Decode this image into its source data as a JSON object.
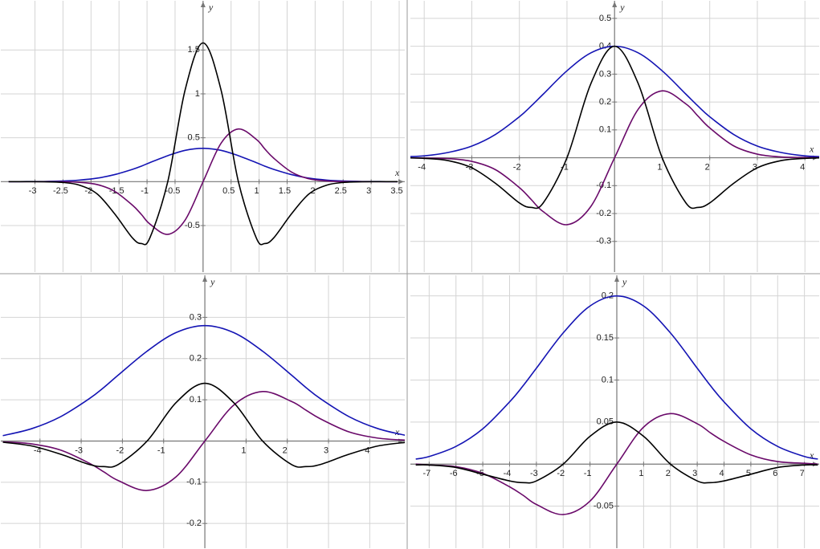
{
  "chart_data": [
    {
      "type": "line",
      "xlabel": "x",
      "ylabel": "y",
      "grid": true,
      "xlim": [
        -3.61,
        3.6
      ],
      "ylim": [
        -1.03,
        2.06
      ],
      "xticks": [
        -3,
        -2.5,
        -2,
        -1.5,
        -1,
        -0.5,
        0.5,
        1,
        1.5,
        2,
        2.5,
        3,
        3.5
      ],
      "yticks": [
        -0.5,
        0.5,
        1,
        1.5
      ],
      "x": [
        -3.47,
        -3.15,
        -2.84,
        -2.52,
        -2.21,
        -1.89,
        -1.58,
        -1.26,
        -1.1,
        -0.95,
        -0.63,
        -0.32,
        0,
        0.32,
        0.63,
        0.95,
        1.1,
        1.26,
        1.58,
        1.89,
        2.21,
        2.52,
        2.84,
        3.15,
        3.47
      ],
      "series": [
        {
          "color": "#1414b4",
          "values": [
            0,
            0.001,
            0.002,
            0.007,
            0.018,
            0.04,
            0.08,
            0.14,
            0.177,
            0.217,
            0.296,
            0.357,
            0.38,
            0.357,
            0.296,
            0.217,
            0.177,
            0.14,
            0.08,
            0.04,
            0.018,
            0.007,
            0.002,
            0.001,
            0
          ]
        },
        {
          "color": "#6a0a6a",
          "values": [
            0,
            0,
            0,
            -0.001,
            -0.008,
            -0.033,
            -0.109,
            -0.268,
            -0.374,
            -0.482,
            -0.6,
            -0.437,
            0,
            0.437,
            0.6,
            0.482,
            0.374,
            0.268,
            0.109,
            0.033,
            0.008,
            0.001,
            0,
            0,
            0
          ]
        },
        {
          "color": "#000000",
          "values": [
            0,
            0,
            -0.001,
            -0.008,
            -0.039,
            -0.14,
            -0.365,
            -0.641,
            -0.705,
            -0.641,
            0,
            1.046,
            1.58,
            1.046,
            0,
            -0.641,
            -0.705,
            -0.641,
            -0.365,
            -0.14,
            -0.039,
            -0.008,
            -0.001,
            0,
            0
          ]
        }
      ]
    },
    {
      "type": "line",
      "xlabel": "x",
      "ylabel": "y",
      "grid": true,
      "xlim": [
        -4.29,
        4.3
      ],
      "ylim": [
        -0.41,
        0.563
      ],
      "xticks": [
        -4,
        -3,
        -2,
        -1,
        1,
        2,
        3,
        4
      ],
      "yticks": [
        -0.3,
        -0.2,
        -0.1,
        0.1,
        0.2,
        0.3,
        0.4,
        0.5
      ],
      "x": [
        -4.5,
        -4,
        -3.5,
        -3,
        -2.5,
        -2,
        -1.75,
        -1.5,
        -1,
        -0.5,
        0,
        0.5,
        1,
        1.5,
        1.75,
        2,
        2.5,
        3,
        3.5,
        4,
        4.5
      ],
      "series": [
        {
          "color": "#1414b4",
          "values": [
            0.003,
            0.007,
            0.019,
            0.042,
            0.084,
            0.147,
            0.186,
            0.228,
            0.312,
            0.376,
            0.4,
            0.376,
            0.312,
            0.228,
            0.186,
            0.147,
            0.084,
            0.042,
            0.019,
            0.007,
            0.003
          ]
        },
        {
          "color": "#6a0a6a",
          "values": [
            0,
            -0.001,
            -0.003,
            -0.013,
            -0.043,
            -0.107,
            -0.15,
            -0.193,
            -0.24,
            -0.175,
            0,
            0.175,
            0.24,
            0.193,
            0.15,
            0.107,
            0.043,
            0.013,
            0.003,
            0.001,
            0
          ]
        },
        {
          "color": "#000000",
          "values": [
            0,
            -0.002,
            -0.01,
            -0.036,
            -0.092,
            -0.162,
            -0.178,
            -0.162,
            0,
            0.265,
            0.4,
            0.265,
            0,
            -0.162,
            -0.178,
            -0.162,
            -0.092,
            -0.036,
            -0.01,
            -0.002,
            0
          ]
        }
      ]
    },
    {
      "type": "line",
      "xlabel": "x",
      "ylabel": "y",
      "grid": true,
      "xlim": [
        -4.95,
        4.85
      ],
      "ylim": [
        -0.26,
        0.402
      ],
      "xticks": [
        -4,
        -3,
        -2,
        -1,
        1,
        2,
        3,
        4
      ],
      "yticks": [
        -0.2,
        -0.1,
        0.1,
        0.2,
        0.3
      ],
      "x": [
        -4.9,
        -4.2,
        -3.5,
        -2.8,
        -2.45,
        -2.1,
        -1.4,
        -0.7,
        0,
        0.7,
        1.4,
        2.1,
        2.45,
        2.8,
        3.5,
        4.2,
        4.9
      ],
      "series": [
        {
          "color": "#1414b4",
          "values": [
            0.013,
            0.03,
            0.059,
            0.103,
            0.13,
            0.16,
            0.218,
            0.263,
            0.28,
            0.263,
            0.218,
            0.16,
            0.13,
            0.103,
            0.059,
            0.03,
            0.013
          ]
        },
        {
          "color": "#6a0a6a",
          "values": [
            -0.002,
            -0.007,
            -0.022,
            -0.054,
            -0.075,
            -0.096,
            -0.12,
            -0.087,
            0,
            0.087,
            0.12,
            0.096,
            0.075,
            0.054,
            0.022,
            0.007,
            0.002
          ]
        },
        {
          "color": "#000000",
          "values": [
            -0.003,
            -0.012,
            -0.032,
            -0.057,
            -0.062,
            -0.057,
            0,
            0.093,
            0.14,
            0.093,
            0,
            -0.057,
            -0.062,
            -0.057,
            -0.032,
            -0.012,
            -0.003
          ]
        }
      ]
    },
    {
      "type": "line",
      "xlabel": "x",
      "ylabel": "y",
      "grid": true,
      "xlim": [
        -7.7,
        7.55
      ],
      "ylim": [
        -0.1,
        0.2245
      ],
      "xticks": [
        -7,
        -6,
        -5,
        -4,
        -3,
        -2,
        -1,
        1,
        2,
        3,
        4,
        5,
        6,
        7
      ],
      "yticks": [
        -0.05,
        0.05,
        0.1,
        0.15,
        0.2
      ],
      "x": [
        -7.5,
        -7,
        -6,
        -5,
        -4,
        -3.5,
        -3,
        -2,
        -1,
        0,
        1,
        2,
        3,
        3.5,
        4,
        5,
        6,
        7,
        7.5
      ],
      "series": [
        {
          "color": "#1414b4",
          "values": [
            0.006,
            0.009,
            0.021,
            0.042,
            0.074,
            0.093,
            0.114,
            0.156,
            0.188,
            0.2,
            0.188,
            0.156,
            0.114,
            0.093,
            0.074,
            0.042,
            0.021,
            0.009,
            0.006
          ]
        },
        {
          "color": "#6a0a6a",
          "values": [
            0,
            -0.001,
            -0.003,
            -0.011,
            -0.027,
            -0.037,
            -0.048,
            -0.06,
            -0.044,
            0,
            0.044,
            0.06,
            0.048,
            0.037,
            0.027,
            0.011,
            0.003,
            0.001,
            0
          ]
        },
        {
          "color": "#000000",
          "values": [
            -0.001,
            -0.001,
            -0.004,
            -0.012,
            -0.02,
            -0.022,
            -0.02,
            0,
            0.033,
            0.05,
            0.033,
            0,
            -0.02,
            -0.022,
            -0.02,
            -0.012,
            -0.004,
            -0.001,
            -0.001
          ]
        }
      ]
    }
  ]
}
